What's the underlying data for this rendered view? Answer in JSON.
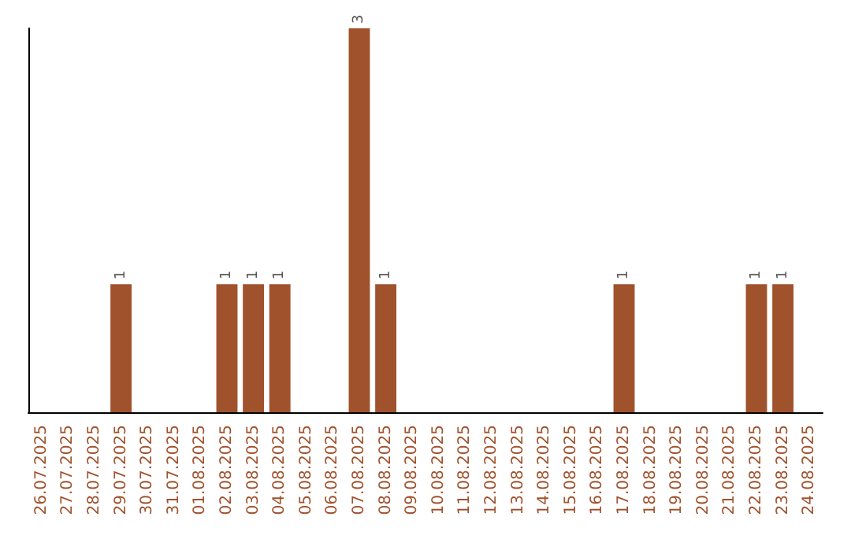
{
  "chart_data": {
    "type": "bar",
    "categories": [
      "26.07.2025",
      "27.07.2025",
      "28.07.2025",
      "29.07.2025",
      "30.07.2025",
      "31.07.2025",
      "01.08.2025",
      "02.08.2025",
      "03.08.2025",
      "04.08.2025",
      "05.08.2025",
      "06.08.2025",
      "07.08.2025",
      "08.08.2025",
      "09.08.2025",
      "10.08.2025",
      "11.08.2025",
      "12.08.2025",
      "13.08.2025",
      "14.08.2025",
      "15.08.2025",
      "16.08.2025",
      "17.08.2025",
      "18.08.2025",
      "19.08.2025",
      "20.08.2025",
      "21.08.2025",
      "22.08.2025",
      "23.08.2025",
      "24.08.2025"
    ],
    "values": [
      0,
      0,
      0,
      1,
      0,
      0,
      0,
      1,
      1,
      1,
      0,
      0,
      3,
      1,
      0,
      0,
      0,
      0,
      0,
      0,
      0,
      0,
      1,
      0,
      0,
      0,
      0,
      1,
      1,
      0
    ],
    "value_labels": [
      null,
      null,
      null,
      "1",
      null,
      null,
      null,
      "1",
      "1",
      "1",
      null,
      null,
      "3",
      "1",
      null,
      null,
      null,
      null,
      null,
      null,
      null,
      null,
      "1",
      null,
      null,
      null,
      null,
      "1",
      "1",
      null
    ],
    "color": "#a0522d",
    "tick_labels": "x",
    "grid": false
  }
}
